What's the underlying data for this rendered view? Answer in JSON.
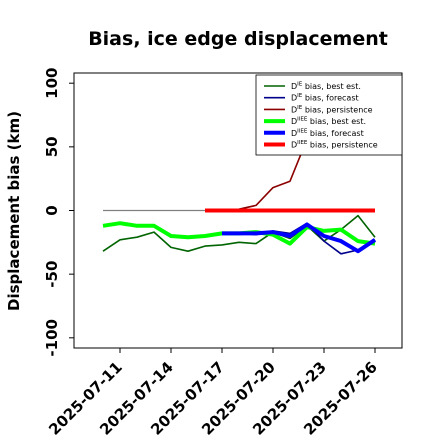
{
  "chart_data": {
    "type": "line",
    "title": "Bias, ice edge displacement",
    "ylabel": "Displacement bias (km)",
    "xlabel": "",
    "ylim": [
      -108,
      108
    ],
    "yticks": [
      -100,
      -50,
      0,
      50,
      100
    ],
    "x_tick_labels": [
      "2025-07-11",
      "2025-07-14",
      "2025-07-17",
      "2025-07-20",
      "2025-07-23",
      "2025-07-26"
    ],
    "x_tick_colors": [
      "#000000",
      "#000000",
      "#228B22",
      "#000000",
      "#000000",
      "#000000"
    ],
    "zero_line": {
      "color": "#808080",
      "from": "2025-07-10",
      "to": "2025-07-26"
    },
    "grid": false,
    "legend_position": "top-right",
    "series": [
      {
        "name": "D^IE bias, best est.",
        "label_base": "D",
        "label_sup": "IE",
        "label_rest": " bias, best est.",
        "color": "#006400",
        "width": "thin",
        "points": [
          [
            "2025-07-10",
            -32
          ],
          [
            "2025-07-11",
            -23
          ],
          [
            "2025-07-12",
            -21
          ],
          [
            "2025-07-13",
            -17
          ],
          [
            "2025-07-14",
            -29
          ],
          [
            "2025-07-15",
            -32
          ],
          [
            "2025-07-16",
            -28
          ],
          [
            "2025-07-17",
            -27
          ],
          [
            "2025-07-18",
            -25
          ],
          [
            "2025-07-19",
            -26
          ],
          [
            "2025-07-20",
            -17
          ],
          [
            "2025-07-21",
            -22
          ],
          [
            "2025-07-22",
            -12
          ],
          [
            "2025-07-23",
            -24
          ],
          [
            "2025-07-24",
            -15
          ],
          [
            "2025-07-25",
            -4
          ],
          [
            "2025-07-26",
            -21
          ]
        ]
      },
      {
        "name": "D^IE bias, forecast",
        "label_base": "D",
        "label_sup": "IE",
        "label_rest": " bias, forecast",
        "color": "#00008B",
        "width": "thin",
        "points": [
          [
            "2025-07-17",
            -18
          ],
          [
            "2025-07-18",
            -18
          ],
          [
            "2025-07-19",
            -19
          ],
          [
            "2025-07-20",
            -16
          ],
          [
            "2025-07-21",
            -18
          ],
          [
            "2025-07-22",
            -10
          ],
          [
            "2025-07-23",
            -24
          ],
          [
            "2025-07-24",
            -34
          ],
          [
            "2025-07-25",
            -31
          ],
          [
            "2025-07-26",
            -23
          ]
        ]
      },
      {
        "name": "D^IE bias, persistence",
        "label_base": "D",
        "label_sup": "IE",
        "label_rest": " bias, persistence",
        "color": "#8B0000",
        "width": "thin",
        "points": [
          [
            "2025-07-16",
            0
          ],
          [
            "2025-07-17",
            0
          ],
          [
            "2025-07-18",
            1
          ],
          [
            "2025-07-19",
            4
          ],
          [
            "2025-07-20",
            18
          ],
          [
            "2025-07-21",
            23
          ],
          [
            "2025-07-22",
            56
          ]
        ]
      },
      {
        "name": "D^IIEE bias, best est.",
        "label_base": "D",
        "label_sup": "IIEE",
        "label_rest": " bias, best est.",
        "color": "#00FF00",
        "width": "thick",
        "points": [
          [
            "2025-07-10",
            -12
          ],
          [
            "2025-07-11",
            -10
          ],
          [
            "2025-07-12",
            -12
          ],
          [
            "2025-07-13",
            -12
          ],
          [
            "2025-07-14",
            -20
          ],
          [
            "2025-07-15",
            -21
          ],
          [
            "2025-07-16",
            -20
          ],
          [
            "2025-07-17",
            -18
          ],
          [
            "2025-07-18",
            -18
          ],
          [
            "2025-07-19",
            -17
          ],
          [
            "2025-07-20",
            -19
          ],
          [
            "2025-07-21",
            -26
          ],
          [
            "2025-07-22",
            -13
          ],
          [
            "2025-07-23",
            -16
          ],
          [
            "2025-07-24",
            -15
          ],
          [
            "2025-07-25",
            -24
          ],
          [
            "2025-07-26",
            -26
          ]
        ]
      },
      {
        "name": "D^IIEE bias, forecast",
        "label_base": "D",
        "label_sup": "IIEE",
        "label_rest": " bias, forecast",
        "color": "#0000FF",
        "width": "thick",
        "points": [
          [
            "2025-07-17",
            -18
          ],
          [
            "2025-07-18",
            -18
          ],
          [
            "2025-07-19",
            -18
          ],
          [
            "2025-07-20",
            -17
          ],
          [
            "2025-07-21",
            -20
          ],
          [
            "2025-07-22",
            -11
          ],
          [
            "2025-07-23",
            -20
          ],
          [
            "2025-07-24",
            -24
          ],
          [
            "2025-07-25",
            -32
          ],
          [
            "2025-07-26",
            -23
          ]
        ]
      },
      {
        "name": "D^IIEE bias, persistence",
        "label_base": "D",
        "label_sup": "IIEE",
        "label_rest": " bias, persistence",
        "color": "#FF0000",
        "width": "thick",
        "points": [
          [
            "2025-07-16",
            0
          ],
          [
            "2025-07-17",
            0
          ],
          [
            "2025-07-18",
            0
          ],
          [
            "2025-07-19",
            0
          ],
          [
            "2025-07-20",
            0
          ],
          [
            "2025-07-21",
            0
          ],
          [
            "2025-07-22",
            0
          ],
          [
            "2025-07-23",
            0
          ],
          [
            "2025-07-24",
            0
          ],
          [
            "2025-07-25",
            0
          ],
          [
            "2025-07-26",
            0
          ]
        ]
      }
    ]
  }
}
